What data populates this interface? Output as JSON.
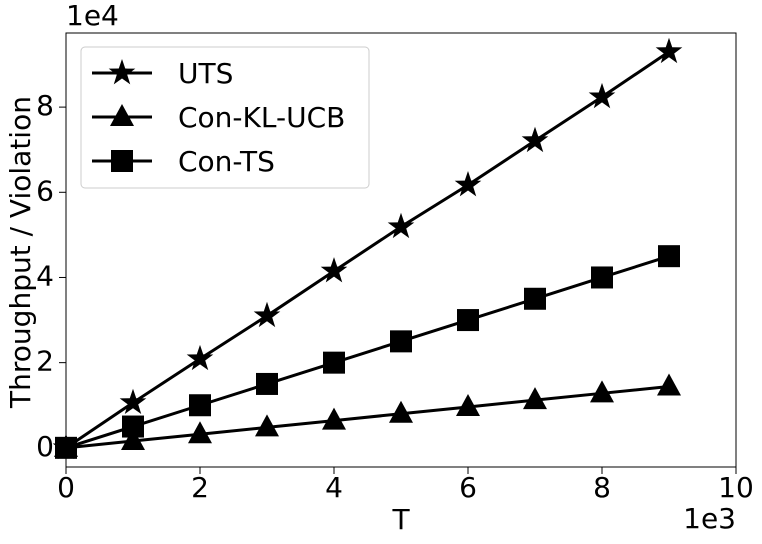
{
  "chart_data": {
    "type": "line",
    "xlabel": "T",
    "ylabel": "Throughput / Violation",
    "x_offset_text": "1e3",
    "y_offset_text": "1e4",
    "x": [
      0,
      1,
      2,
      3,
      4,
      5,
      6,
      7,
      8,
      9
    ],
    "series": [
      {
        "name": "UTS",
        "color": "#000000",
        "marker": "star",
        "values": [
          0,
          1.06,
          2.09,
          3.1,
          4.15,
          5.19,
          6.17,
          7.21,
          8.24,
          9.3
        ]
      },
      {
        "name": "Con-KL-UCB",
        "color": "#000000",
        "marker": "triangle",
        "values": [
          0,
          0.16,
          0.32,
          0.48,
          0.64,
          0.8,
          0.96,
          1.12,
          1.28,
          1.44
        ]
      },
      {
        "name": "Con-TS",
        "color": "#000000",
        "marker": "square",
        "values": [
          0,
          0.5,
          1.0,
          1.5,
          2.0,
          2.5,
          3.0,
          3.5,
          4.0,
          4.5
        ]
      }
    ],
    "xlim": [
      0,
      10
    ],
    "xticks": [
      0,
      2,
      4,
      6,
      8,
      10
    ],
    "ylim": [
      -0.45,
      9.74
    ],
    "yticks": [
      0,
      2,
      4,
      6,
      8
    ],
    "grid": false,
    "legend": "upper left"
  }
}
